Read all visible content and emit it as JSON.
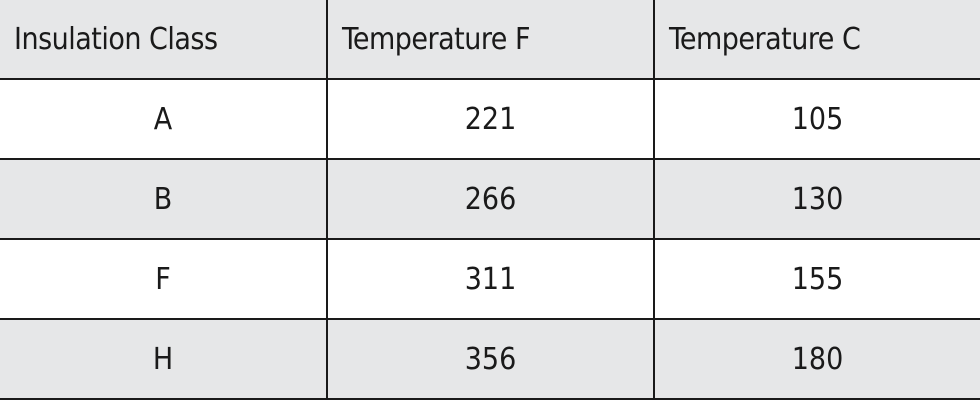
{
  "table": {
    "headers": [
      "Insulation Class",
      "Temperature F",
      "Temperature C"
    ],
    "rows": [
      [
        "A",
        "221",
        "105"
      ],
      [
        "B",
        "266",
        "130"
      ],
      [
        "F",
        "311",
        "155"
      ],
      [
        "H",
        "356",
        "180"
      ]
    ]
  }
}
